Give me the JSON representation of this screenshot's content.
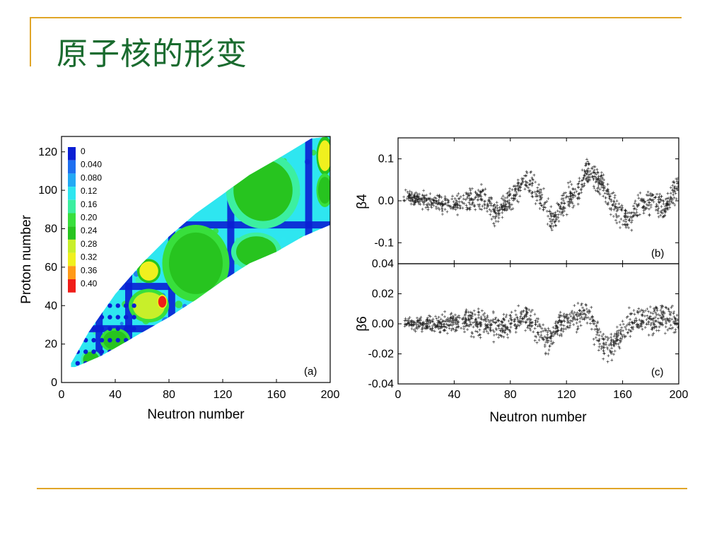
{
  "slide": {
    "title": "原子核的形变"
  },
  "colors": {
    "accent_rule": "#e0a528",
    "title": "#1a6b2f"
  },
  "chart_data": [
    {
      "type": "heatmap",
      "panel_label": "(a)",
      "xlabel": "Neutron number",
      "ylabel": "Proton number",
      "xlim": [
        0,
        200
      ],
      "ylim": [
        0,
        128
      ],
      "xticks": [
        "0",
        "40",
        "80",
        "120",
        "160",
        "200"
      ],
      "yticks": [
        "0",
        "20",
        "40",
        "60",
        "80",
        "100",
        "120"
      ],
      "legend_placement": "top-left",
      "colorbar": {
        "labels": [
          "0",
          "0.040",
          "0.080",
          "0.12",
          "0.16",
          "0.20",
          "0.24",
          "0.28",
          "0.32",
          "0.36",
          "0.40"
        ],
        "colors": [
          "#0a1fd4",
          "#1e6ff0",
          "#23a9f5",
          "#2ee6f0",
          "#3cefa0",
          "#38df3c",
          "#27c41f",
          "#c8ef2a",
          "#f0f01e",
          "#ff9a17",
          "#f01d18"
        ]
      },
      "region": {
        "lower_edge": [
          [
            7,
            8
          ],
          [
            10,
            8
          ],
          [
            20,
            11
          ],
          [
            30,
            14
          ],
          [
            40,
            18
          ],
          [
            60,
            26
          ],
          [
            80,
            34
          ],
          [
            100,
            43
          ],
          [
            120,
            53
          ],
          [
            140,
            62
          ],
          [
            160,
            68
          ],
          [
            180,
            76
          ],
          [
            200,
            82
          ]
        ],
        "upper_edge": [
          [
            200,
            128
          ],
          [
            186,
            127
          ],
          [
            160,
            116
          ],
          [
            140,
            108
          ],
          [
            120,
            98
          ],
          [
            100,
            88
          ],
          [
            80,
            76
          ],
          [
            60,
            62
          ],
          [
            40,
            46
          ],
          [
            20,
            26
          ],
          [
            12,
            16
          ],
          [
            7,
            10
          ]
        ]
      },
      "regions": [
        {
          "cx": 100,
          "cy": 62,
          "rx": 20,
          "ry": 16,
          "value": 0.24
        },
        {
          "cx": 150,
          "cy": 100,
          "rx": 22,
          "ry": 16,
          "value": 0.22
        },
        {
          "cx": 145,
          "cy": 68,
          "rx": 15,
          "ry": 8,
          "value": 0.22
        },
        {
          "cx": 65,
          "cy": 40,
          "rx": 12,
          "ry": 7,
          "value": 0.26
        },
        {
          "cx": 65,
          "cy": 58,
          "rx": 7,
          "ry": 5,
          "value": 0.3
        },
        {
          "cx": 40,
          "cy": 22,
          "rx": 9,
          "ry": 5,
          "value": 0.24
        },
        {
          "cx": 22,
          "cy": 12,
          "rx": 6,
          "ry": 4,
          "value": 0.22
        },
        {
          "cx": 196,
          "cy": 118,
          "rx": 5,
          "ry": 8,
          "value": 0.3
        },
        {
          "cx": 196,
          "cy": 100,
          "rx": 5,
          "ry": 7,
          "value": 0.24
        },
        {
          "cx": 75,
          "cy": 42,
          "rx": 3,
          "ry": 3,
          "value": 0.38
        }
      ],
      "magic_neutron": [
        28,
        50,
        82,
        126,
        184
      ],
      "magic_proton": [
        28,
        50,
        82
      ]
    },
    {
      "type": "scatter",
      "panel_label": "(b)",
      "ylabel": "β4",
      "xlim": [
        0,
        200
      ],
      "ylim": [
        -0.15,
        0.15
      ],
      "yticks": [
        "0.1",
        "0.0",
        "-0.1"
      ],
      "marker": "+",
      "trend": [
        [
          5,
          0.01
        ],
        [
          20,
          0.0
        ],
        [
          40,
          -0.01
        ],
        [
          60,
          0.01
        ],
        [
          70,
          -0.03
        ],
        [
          80,
          0.0
        ],
        [
          90,
          0.05
        ],
        [
          100,
          0.02
        ],
        [
          110,
          -0.05
        ],
        [
          118,
          0.0
        ],
        [
          128,
          0.02
        ],
        [
          135,
          0.07
        ],
        [
          145,
          0.04
        ],
        [
          155,
          -0.02
        ],
        [
          163,
          -0.05
        ],
        [
          172,
          -0.01
        ],
        [
          182,
          0.0
        ],
        [
          190,
          -0.02
        ],
        [
          200,
          0.04
        ]
      ],
      "spread": 0.02
    },
    {
      "type": "scatter",
      "panel_label": "(c)",
      "ylabel": "β6",
      "xlabel": "Neutron number",
      "xlim": [
        0,
        200
      ],
      "ylim": [
        -0.04,
        0.04
      ],
      "xticks": [
        "0",
        "40",
        "80",
        "120",
        "160",
        "200"
      ],
      "yticks": [
        "0.04",
        "0.02",
        "0.00",
        "-0.02",
        "-0.04"
      ],
      "marker": "+",
      "trend": [
        [
          5,
          0.0
        ],
        [
          30,
          0.0
        ],
        [
          45,
          0.002
        ],
        [
          60,
          0.0
        ],
        [
          75,
          -0.002
        ],
        [
          90,
          0.005
        ],
        [
          100,
          -0.005
        ],
        [
          108,
          -0.012
        ],
        [
          115,
          0.0
        ],
        [
          125,
          0.003
        ],
        [
          135,
          0.008
        ],
        [
          145,
          -0.012
        ],
        [
          152,
          -0.016
        ],
        [
          160,
          -0.005
        ],
        [
          170,
          0.004
        ],
        [
          180,
          0.002
        ],
        [
          190,
          0.006
        ],
        [
          200,
          0.0
        ]
      ],
      "spread": 0.006
    }
  ]
}
